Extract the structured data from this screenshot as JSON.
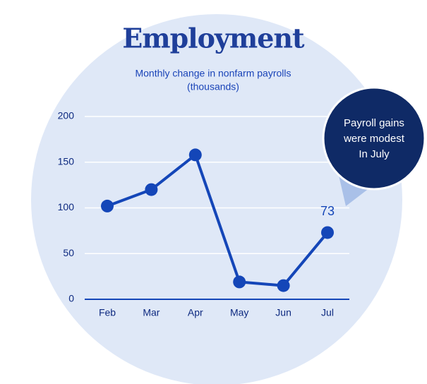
{
  "chart_data": {
    "type": "line",
    "title": "Employment",
    "subtitle": [
      "Monthly change in nonfarm payrolls",
      "(thousands)"
    ],
    "categories": [
      "Feb",
      "Mar",
      "Apr",
      "May",
      "Jun",
      "Jul"
    ],
    "values": [
      102,
      120,
      158,
      19,
      15,
      73
    ],
    "color": "#1446b8",
    "ylim": [
      0,
      200
    ],
    "yticks": [
      0,
      50,
      100,
      150,
      200
    ],
    "grid": true,
    "annotation": [
      "Payroll gains",
      "were modest",
      "In July"
    ]
  }
}
